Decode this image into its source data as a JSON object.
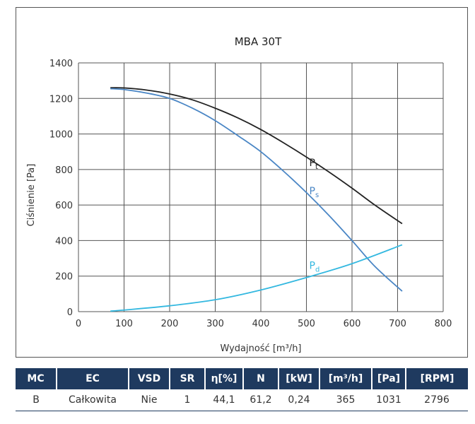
{
  "chart_data": {
    "type": "line",
    "title": "MBA 30T",
    "xlabel": "Wydajność [m³/h]",
    "ylabel": "Ciśnienie [Pa]",
    "xlim": [
      0,
      800
    ],
    "ylim": [
      0,
      1400
    ],
    "xticks": [
      0,
      100,
      200,
      300,
      400,
      500,
      600,
      700,
      800
    ],
    "yticks": [
      0,
      200,
      400,
      600,
      800,
      1000,
      1200,
      1400
    ],
    "grid": true,
    "series": [
      {
        "name": "Pt",
        "label_main": "P",
        "label_sub": "t",
        "color": "#222222",
        "x": [
          70,
          100,
          150,
          200,
          250,
          300,
          350,
          400,
          450,
          500,
          550,
          600,
          650,
          710
        ],
        "y": [
          1260,
          1259,
          1247,
          1225,
          1192,
          1145,
          1090,
          1025,
          950,
          870,
          785,
          695,
          600,
          495
        ]
      },
      {
        "name": "Ps",
        "label_main": "P",
        "label_sub": "s",
        "color": "#4a86c5",
        "x": [
          70,
          100,
          150,
          200,
          250,
          300,
          350,
          400,
          450,
          500,
          550,
          600,
          650,
          710
        ],
        "y": [
          1255,
          1250,
          1230,
          1200,
          1145,
          1075,
          990,
          900,
          790,
          670,
          540,
          400,
          255,
          115
        ]
      },
      {
        "name": "Pd",
        "label_main": "P",
        "label_sub": "d",
        "color": "#33b8e0",
        "x": [
          70,
          100,
          200,
          300,
          400,
          500,
          600,
          710
        ],
        "y": [
          3,
          9,
          33,
          67,
          122,
          192,
          270,
          376
        ]
      }
    ]
  },
  "table": {
    "headers": [
      "MC",
      "EC",
      "VSD",
      "SR",
      "η[%]",
      "N",
      "[kW]",
      "[m³/h]",
      "[Pa]",
      "[RPM]"
    ],
    "row": [
      "B",
      "Całkowita",
      "Nie",
      "1",
      "44,1",
      "61,2",
      "0,24",
      "365",
      "1031",
      "2796"
    ]
  }
}
